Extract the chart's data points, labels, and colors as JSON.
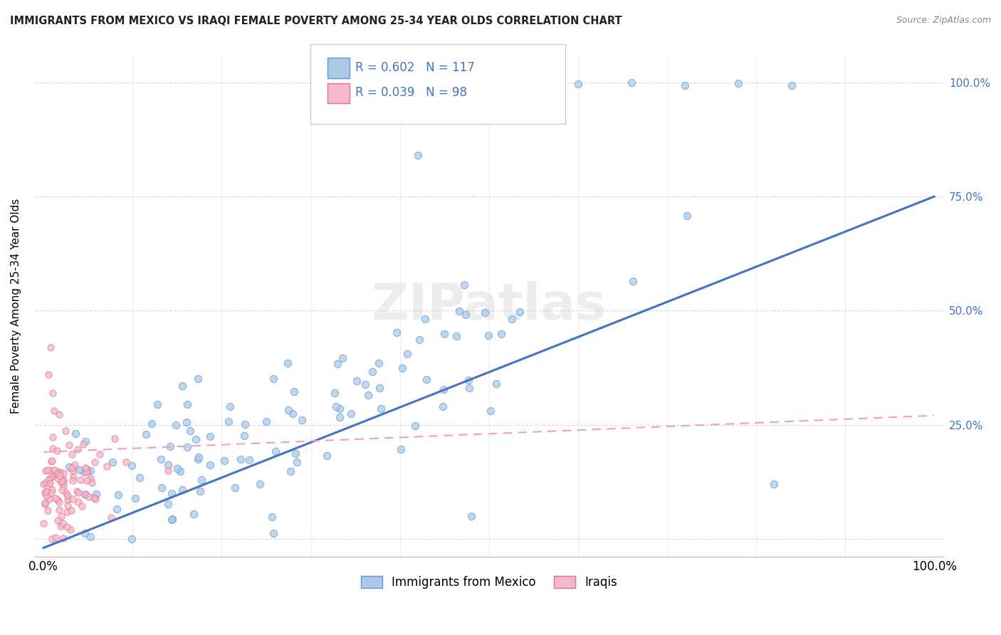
{
  "title": "IMMIGRANTS FROM MEXICO VS IRAQI FEMALE POVERTY AMONG 25-34 YEAR OLDS CORRELATION CHART",
  "source": "Source: ZipAtlas.com",
  "ylabel": "Female Poverty Among 25-34 Year Olds",
  "legend_label1": "Immigrants from Mexico",
  "legend_label2": "Iraqis",
  "R1": "0.602",
  "N1": "117",
  "R2": "0.039",
  "N2": "98",
  "blue_fill": "#aec9e8",
  "blue_edge": "#5b9bd5",
  "pink_fill": "#f4b8c8",
  "pink_edge": "#e07090",
  "line_blue": "#4472c4",
  "line_pink": "#f4a0b0",
  "right_tick_color": "#4472c4",
  "watermark": "ZIPatlas",
  "grid_color": "#d0d0d0",
  "title_color": "#222222",
  "source_color": "#888888"
}
